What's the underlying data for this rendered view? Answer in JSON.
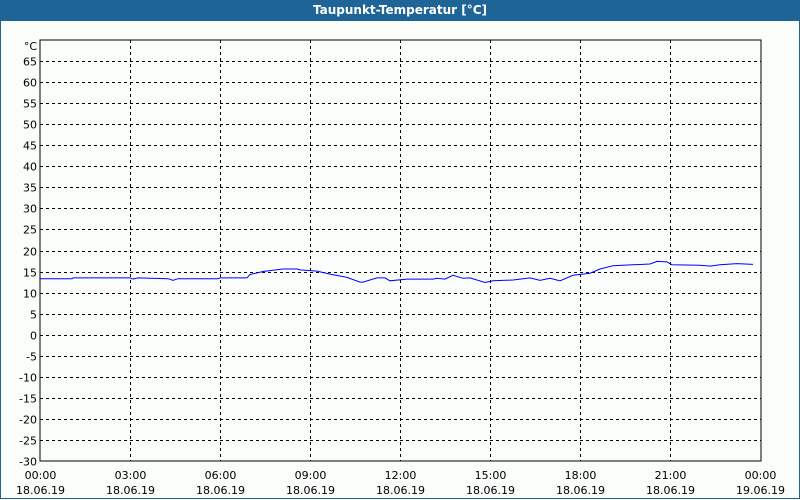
{
  "chart_data": {
    "type": "line",
    "title": "Taupunkt-Temperatur [°C]",
    "ylabel": "°C",
    "xlabel": "",
    "ylim": [
      -30,
      70
    ],
    "yticks": [
      65,
      60,
      55,
      50,
      45,
      40,
      35,
      30,
      25,
      20,
      15,
      10,
      5,
      0,
      -5,
      -10,
      -15,
      -20,
      -25,
      -30
    ],
    "xlim_hours": [
      0,
      24
    ],
    "xticks": [
      {
        "time": "00:00",
        "date": "18.06.19"
      },
      {
        "time": "03:00",
        "date": "18.06.19"
      },
      {
        "time": "06:00",
        "date": "18.06.19"
      },
      {
        "time": "09:00",
        "date": "18.06.19"
      },
      {
        "time": "12:00",
        "date": "18.06.19"
      },
      {
        "time": "15:00",
        "date": "18.06.19"
      },
      {
        "time": "18:00",
        "date": "18.06.19"
      },
      {
        "time": "21:00",
        "date": "18.06.19"
      },
      {
        "time": "00:00",
        "date": "19.06.19"
      }
    ],
    "grid": true,
    "line_color": "#0000ff",
    "series": [
      {
        "x": [
          "00:00",
          "01:04",
          "01:06",
          "03:00",
          "03:06",
          "03:16",
          "04:16",
          "04:26",
          "04:36",
          "05:56",
          "06:00",
          "06:54",
          "07:00",
          "07:26",
          "08:06",
          "08:34",
          "08:40",
          "09:14",
          "09:40",
          "10:14",
          "10:40",
          "10:46",
          "11:14",
          "11:30",
          "11:40",
          "12:14",
          "13:06",
          "13:14",
          "13:30",
          "13:46",
          "14:06",
          "14:20",
          "14:50",
          "15:06",
          "15:46",
          "16:20",
          "16:40",
          "17:00",
          "17:20",
          "17:46",
          "18:20",
          "18:40",
          "19:06",
          "19:46",
          "20:20",
          "20:34",
          "20:54",
          "21:04",
          "22:00",
          "22:20",
          "22:40",
          "23:14",
          "23:46"
        ],
        "y": [
          13.3,
          13.3,
          13.5,
          13.5,
          13.2,
          13.5,
          13.3,
          12.9,
          13.3,
          13.3,
          13.5,
          13.5,
          14.3,
          15.0,
          15.6,
          15.6,
          15.4,
          15.1,
          14.4,
          13.6,
          12.5,
          12.5,
          13.5,
          13.5,
          12.8,
          13.2,
          13.2,
          13.4,
          13.2,
          14.1,
          13.4,
          13.5,
          12.4,
          12.8,
          13.0,
          13.5,
          12.9,
          13.4,
          12.8,
          14.1,
          14.6,
          15.6,
          16.4,
          16.6,
          16.8,
          17.4,
          17.3,
          16.6,
          16.5,
          16.3,
          16.6,
          16.9,
          16.7
        ]
      }
    ]
  }
}
